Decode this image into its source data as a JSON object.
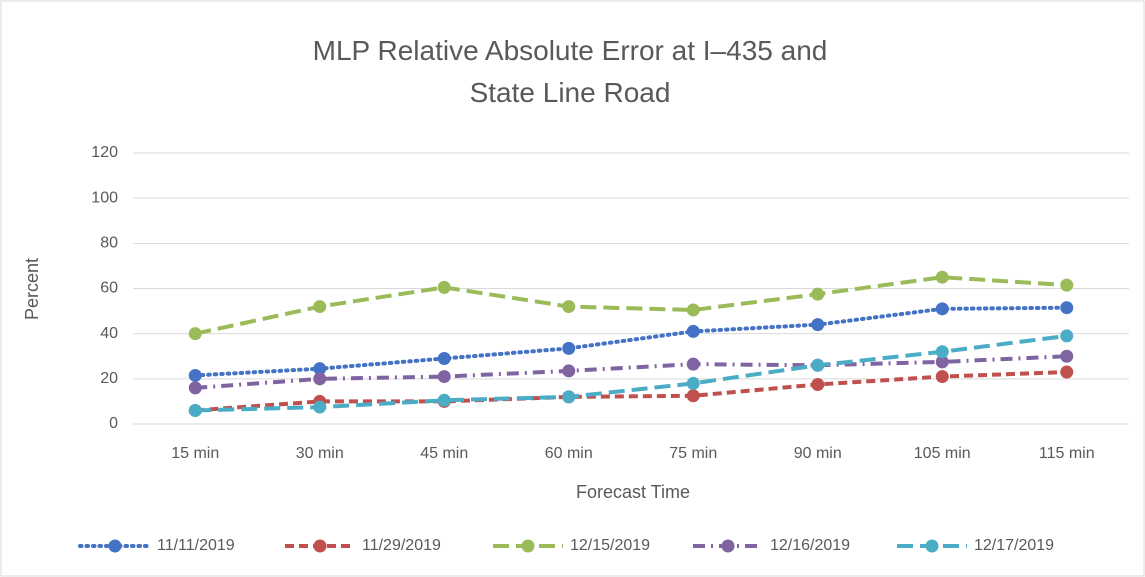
{
  "chart_data": {
    "type": "line",
    "title": "MLP Relative Absolute Error at I–435 and State Line Road",
    "x_label": "Forecast Time",
    "y_label": "Percent",
    "categories": [
      "15 min",
      "30 min",
      "45 min",
      "60 min",
      "75 min",
      "90 min",
      "105 min",
      "115 min"
    ],
    "series": [
      {
        "name": "11/11/2019",
        "color": "#4472c4",
        "dash": "dotted",
        "values": [
          21.5,
          24.5,
          29,
          33.5,
          41,
          44,
          51,
          51.5
        ]
      },
      {
        "name": "11/29/2019",
        "color": "#c0504d",
        "dash": "dashed",
        "values": [
          6,
          10,
          10,
          12,
          12.5,
          17.5,
          21,
          23
        ]
      },
      {
        "name": "12/15/2019",
        "color": "#9bbb59",
        "dash": "long-dash",
        "values": [
          40,
          52,
          60.5,
          52,
          50.5,
          57.5,
          65,
          61.5
        ]
      },
      {
        "name": "12/16/2019",
        "color": "#8064a2",
        "dash": "dash-dot",
        "values": [
          16,
          20,
          21,
          23.5,
          26.5,
          26,
          27.5,
          30
        ]
      },
      {
        "name": "12/17/2019",
        "color": "#4bacc6",
        "dash": "long-dash",
        "values": [
          6,
          7.5,
          10.5,
          12,
          18,
          26,
          32,
          39
        ]
      }
    ],
    "ylim": [
      0,
      120
    ],
    "yticks": [
      0,
      20,
      40,
      60,
      80,
      100,
      120
    ],
    "grid": true,
    "legend": "bottom"
  }
}
